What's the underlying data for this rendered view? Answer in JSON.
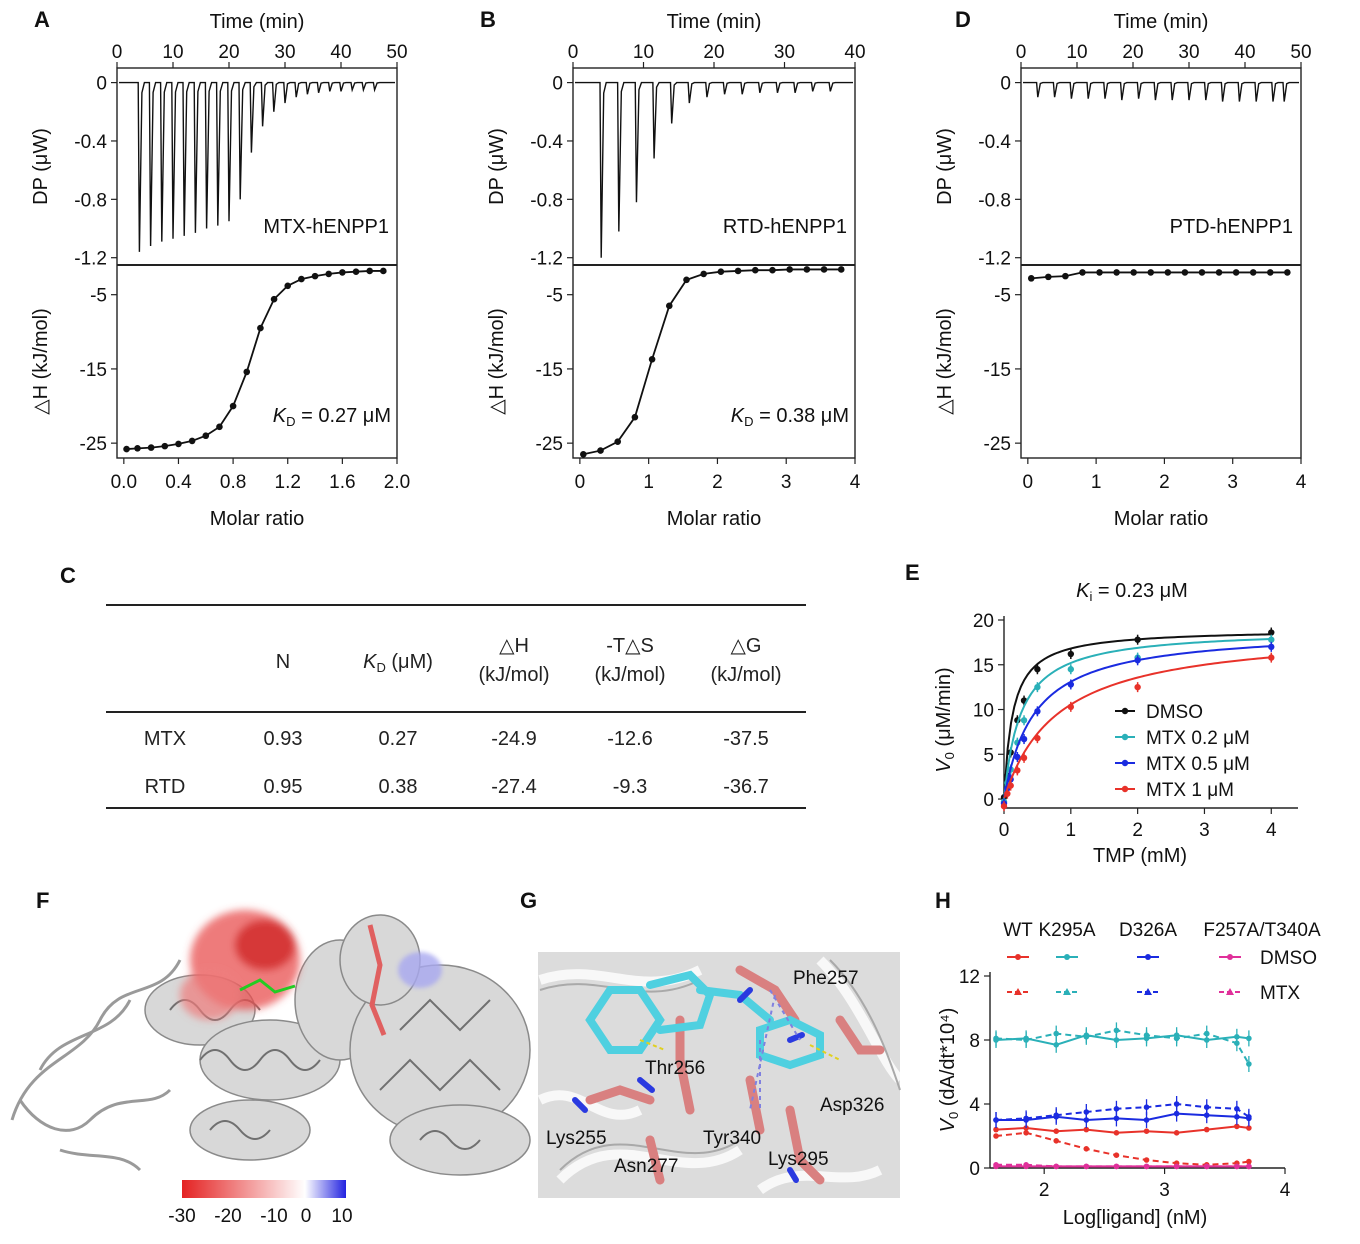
{
  "panels": {
    "A": "A",
    "B": "B",
    "C": "C",
    "D": "D",
    "E": "E",
    "F": "F",
    "G": "G",
    "H": "H"
  },
  "chart_data": [
    {
      "id": "A",
      "type": "line",
      "top": {
        "xlabel": "Time (min)",
        "ylabel": "DP (μW)",
        "xlim": [
          0,
          50
        ],
        "xticks": [
          "0",
          "10",
          "20",
          "30",
          "40",
          "50"
        ],
        "ylim": [
          -1.25,
          0.1
        ],
        "yticks": [
          "0",
          "-0.4",
          "-0.8",
          "-1.2"
        ],
        "label": "MTX-hENPP1",
        "injections": {
          "times": [
            4,
            6,
            8,
            10,
            12,
            14,
            16,
            18,
            20,
            22,
            24,
            26,
            28,
            30,
            32,
            34,
            36,
            38,
            40,
            42,
            44,
            46
          ],
          "depths": [
            -1.16,
            -1.12,
            -1.09,
            -1.07,
            -1.05,
            -1.03,
            -1.0,
            -0.98,
            -0.95,
            -0.8,
            -0.48,
            -0.3,
            -0.2,
            -0.14,
            -0.1,
            -0.08,
            -0.07,
            -0.06,
            -0.06,
            -0.05,
            -0.05,
            -0.05
          ]
        }
      },
      "bottom": {
        "xlabel": "Molar ratio",
        "ylabel": "△H (kJ/mol)",
        "xlim": [
          -0.05,
          2.0
        ],
        "xticks": [
          "0.0",
          "0.4",
          "0.8",
          "1.2",
          "1.6",
          "2.0"
        ],
        "ylim": [
          -27,
          -1
        ],
        "yticks": [
          "-5",
          "-15",
          "-25"
        ],
        "points": {
          "x": [
            0.02,
            0.1,
            0.2,
            0.3,
            0.4,
            0.5,
            0.6,
            0.7,
            0.8,
            0.9,
            1.0,
            1.1,
            1.2,
            1.3,
            1.4,
            1.5,
            1.6,
            1.7,
            1.8,
            1.9
          ],
          "y": [
            -25.8,
            -25.7,
            -25.6,
            -25.4,
            -25.1,
            -24.7,
            -24.0,
            -22.8,
            -20.0,
            -15.4,
            -9.5,
            -5.6,
            -3.8,
            -2.9,
            -2.5,
            -2.2,
            -2.0,
            -1.9,
            -1.8,
            -1.8
          ]
        },
        "annotation": {
          "k": "K",
          "sub": "D",
          "rest": " = 0.27 μM"
        }
      }
    },
    {
      "id": "B",
      "type": "line",
      "top": {
        "xlabel": "Time (min)",
        "ylabel": "DP (μW)",
        "xlim": [
          0,
          40
        ],
        "xticks": [
          "0",
          "10",
          "20",
          "30",
          "40"
        ],
        "ylim": [
          -1.25,
          0.1
        ],
        "yticks": [
          "0",
          "-0.4",
          "-0.8",
          "-1.2"
        ],
        "label": "RTD-hENPP1",
        "injections": {
          "times": [
            4,
            6.5,
            9,
            11.5,
            14,
            16.5,
            19,
            21.5,
            24,
            26.5,
            29,
            31.5,
            34,
            36.5
          ],
          "depths": [
            -1.2,
            -1.02,
            -0.82,
            -0.52,
            -0.28,
            -0.14,
            -0.1,
            -0.08,
            -0.08,
            -0.07,
            -0.07,
            -0.07,
            -0.06,
            -0.06
          ]
        }
      },
      "bottom": {
        "xlabel": "Molar ratio",
        "ylabel": "△H (kJ/mol)",
        "xlim": [
          -0.1,
          4.0
        ],
        "xticks": [
          "0",
          "1",
          "2",
          "3",
          "4"
        ],
        "ylim": [
          -27,
          -1
        ],
        "yticks": [
          "-5",
          "-15",
          "-25"
        ],
        "points": {
          "x": [
            0.05,
            0.3,
            0.55,
            0.8,
            1.05,
            1.3,
            1.55,
            1.8,
            2.05,
            2.3,
            2.55,
            2.8,
            3.05,
            3.3,
            3.55,
            3.8
          ],
          "y": [
            -26.5,
            -26.0,
            -24.8,
            -21.5,
            -13.7,
            -6.5,
            -3.0,
            -2.2,
            -1.9,
            -1.8,
            -1.7,
            -1.7,
            -1.6,
            -1.6,
            -1.6,
            -1.6
          ]
        },
        "annotation": {
          "k": "K",
          "sub": "D",
          "rest": " = 0.38 μM"
        }
      }
    },
    {
      "id": "D",
      "type": "line",
      "top": {
        "xlabel": "Time (min)",
        "ylabel": "DP (μW)",
        "xlim": [
          0,
          50
        ],
        "xticks": [
          "0",
          "10",
          "20",
          "30",
          "40",
          "50"
        ],
        "ylim": [
          -1.25,
          0.1
        ],
        "yticks": [
          "0",
          "-0.4",
          "-0.8",
          "-1.2"
        ],
        "label": "PTD-hENPP1",
        "injections": {
          "times": [
            3,
            6,
            9,
            12,
            15,
            18,
            21,
            24,
            27,
            30,
            33,
            36,
            39,
            42,
            45,
            47
          ],
          "depths": [
            -0.1,
            -0.1,
            -0.11,
            -0.11,
            -0.11,
            -0.12,
            -0.11,
            -0.12,
            -0.12,
            -0.12,
            -0.12,
            -0.13,
            -0.13,
            -0.13,
            -0.13,
            -0.13
          ]
        }
      },
      "bottom": {
        "xlabel": "Molar ratio",
        "ylabel": "△H (kJ/mol)",
        "xlim": [
          -0.1,
          4.0
        ],
        "xticks": [
          "0",
          "1",
          "2",
          "3",
          "4"
        ],
        "ylim": [
          -27,
          -1
        ],
        "yticks": [
          "-5",
          "-15",
          "-25"
        ],
        "points": {
          "x": [
            0.05,
            0.3,
            0.55,
            0.8,
            1.05,
            1.3,
            1.55,
            1.8,
            2.05,
            2.3,
            2.55,
            2.8,
            3.05,
            3.3,
            3.55,
            3.8
          ],
          "y": [
            -2.8,
            -2.6,
            -2.5,
            -2.0,
            -2.0,
            -2.0,
            -2.0,
            -2.0,
            -2.0,
            -2.0,
            -2.0,
            -2.0,
            -2.0,
            -2.0,
            -2.0,
            -2.0
          ]
        }
      }
    },
    {
      "id": "C",
      "type": "table",
      "headers": [
        {
          "l1": "",
          "l2": "N"
        },
        {
          "l1": "",
          "k": "K",
          "sub": "D",
          "rest": " (μM)"
        },
        {
          "l1": "△H",
          "l2": "(kJ/mol)"
        },
        {
          "l1": "-T△S",
          "l2": "(kJ/mol)"
        },
        {
          "l1": "△G",
          "l2": "(kJ/mol)"
        }
      ],
      "rows": [
        {
          "name": "MTX",
          "cells": [
            "0.93",
            "0.27",
            "-24.9",
            "-12.6",
            "-37.5"
          ]
        },
        {
          "name": "RTD",
          "cells": [
            "0.95",
            "0.38",
            "-27.4",
            "-9.3",
            "-36.7"
          ]
        }
      ]
    },
    {
      "id": "E",
      "type": "scatter",
      "title": {
        "k": "K",
        "sub": "i",
        "rest": " = 0.23 μM"
      },
      "xlabel": "TMP (mM)",
      "ylabel": {
        "v": "V",
        "sub": "0",
        "rest": " (μM/min)"
      },
      "xlim": [
        0,
        4.4
      ],
      "ylim": [
        -1,
        20
      ],
      "xticks": [
        "0",
        "1",
        "2",
        "3",
        "4"
      ],
      "yticks": [
        "0",
        "5",
        "10",
        "15",
        "20"
      ],
      "x": [
        0.0,
        0.05,
        0.1,
        0.2,
        0.3,
        0.5,
        1.0,
        2.0,
        4.0
      ],
      "series": [
        {
          "name": "DMSO",
          "color": "#111111",
          "vmax": 19.0,
          "km": 0.13,
          "values": [
            0.2,
            2.6,
            5.2,
            8.8,
            11.0,
            14.5,
            16.2,
            17.8,
            18.6
          ]
        },
        {
          "name": "MTX  0.2 μM",
          "color": "#2ab0b8",
          "vmax": 19.0,
          "km": 0.25,
          "values": [
            -0.3,
            1.8,
            3.3,
            6.3,
            8.8,
            12.5,
            14.5,
            15.8,
            17.8
          ]
        },
        {
          "name": "MTX  0.5 μM",
          "color": "#1a2be0",
          "vmax": 19.0,
          "km": 0.45,
          "values": [
            -0.5,
            1.2,
            2.2,
            4.7,
            6.7,
            9.8,
            12.8,
            15.5,
            17.0
          ]
        },
        {
          "name": "MTX  1 μM",
          "color": "#e8322a",
          "vmax": 19.0,
          "km": 0.8,
          "values": [
            -0.8,
            0.6,
            1.5,
            3.2,
            4.6,
            6.8,
            10.3,
            12.5,
            15.8
          ]
        }
      ]
    },
    {
      "id": "H",
      "type": "line",
      "xlabel": "Log[ligand] (nM)",
      "ylabel": {
        "v": "V",
        "sub": "0",
        "rest": " (dA/dt*10⁴)"
      },
      "xlim": [
        1.55,
        4.0
      ],
      "ylim": [
        0,
        12
      ],
      "xticks": [
        "2",
        "3",
        "4"
      ],
      "yticks": [
        "0",
        "4",
        "8",
        "12"
      ],
      "x": [
        1.6,
        1.85,
        2.1,
        2.35,
        2.6,
        2.85,
        3.1,
        3.35,
        3.6,
        3.7
      ],
      "column_labels": [
        "WT",
        "K295A",
        "D326A",
        "F257A/T340A"
      ],
      "legend": [
        "DMSO",
        "MTX"
      ],
      "series": [
        {
          "name": "WT",
          "color": "#e8322a",
          "dmso": [
            2.4,
            2.5,
            2.3,
            2.4,
            2.2,
            2.3,
            2.2,
            2.4,
            2.6,
            2.5
          ],
          "mtx": [
            2.0,
            2.2,
            1.7,
            1.2,
            0.8,
            0.5,
            0.3,
            0.2,
            0.3,
            0.4
          ]
        },
        {
          "name": "K295A",
          "color": "#2ab0b8",
          "dmso": [
            8.0,
            8.1,
            7.7,
            8.3,
            8.0,
            8.1,
            8.3,
            8.0,
            8.2,
            8.1
          ],
          "mtx": [
            8.1,
            8.0,
            8.4,
            8.2,
            8.6,
            8.3,
            8.1,
            8.4,
            7.8,
            6.5
          ]
        },
        {
          "name": "D326A",
          "color": "#1a2be0",
          "dmso": [
            3.0,
            3.0,
            3.2,
            3.0,
            3.1,
            3.0,
            3.4,
            3.3,
            3.2,
            3.1
          ],
          "mtx": [
            3.0,
            3.1,
            3.3,
            3.5,
            3.7,
            3.8,
            4.0,
            3.8,
            3.7,
            3.2
          ]
        },
        {
          "name": "F257A/T340A",
          "color": "#e0309a",
          "dmso": [
            0.1,
            0.1,
            0.1,
            0.1,
            0.1,
            0.1,
            0.1,
            0.1,
            0.1,
            0.1
          ],
          "mtx": [
            0.2,
            0.2,
            0.1,
            0.1,
            0.1,
            0.1,
            0.1,
            0.1,
            0.1,
            0.1
          ]
        }
      ]
    }
  ],
  "panel_F": {
    "colorbar_ticks": [
      "-30",
      "-20",
      "-10",
      "0",
      "10"
    ],
    "colorbar_colors": [
      "#e42222",
      "#ffffff",
      "#2222e0"
    ]
  },
  "panel_G": {
    "residues": [
      "Phe257",
      "Thr256",
      "Asp326",
      "Lys255",
      "Tyr340",
      "Asn277",
      "Lys295"
    ]
  }
}
